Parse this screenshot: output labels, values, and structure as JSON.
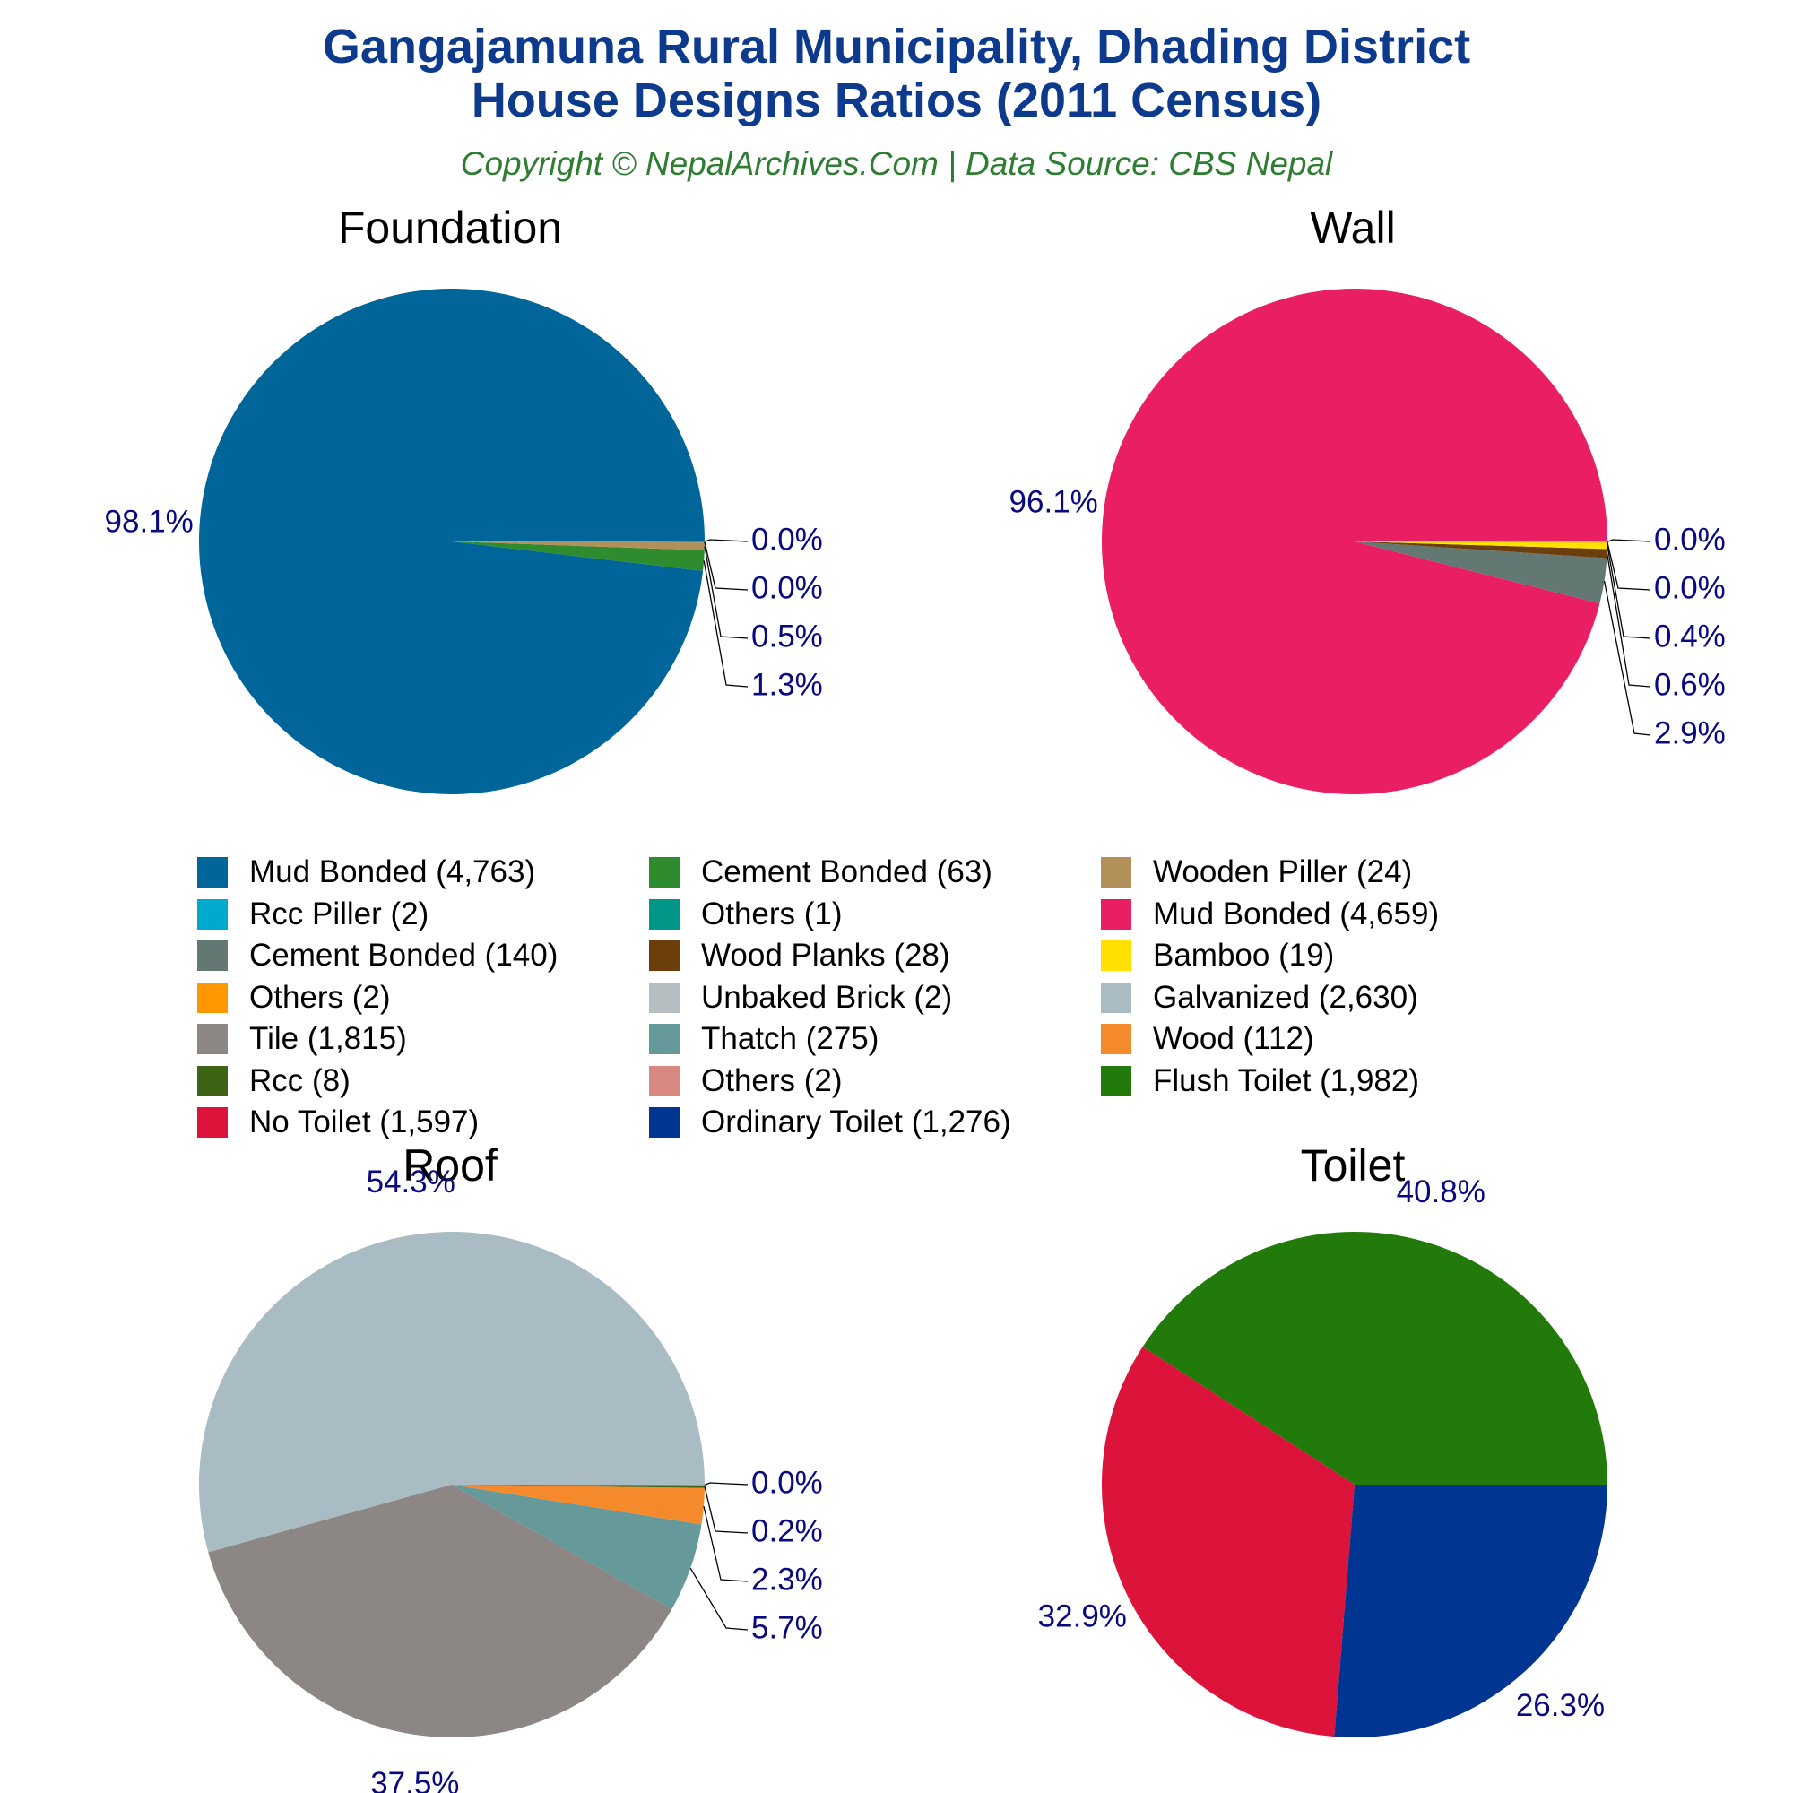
{
  "header": {
    "title_line1": "Gangajamuna Rural Municipality, Dhading District",
    "title_line2": "House Designs Ratios (2011 Census)",
    "subtitle": "Copyright © NepalArchives.Com | Data Source: CBS Nepal",
    "title_color": "#0D3A8C",
    "subtitle_color": "#2E7D32"
  },
  "label_color": "#0A0A80",
  "chart_data": [
    {
      "type": "pie",
      "title": "Foundation",
      "slices": [
        {
          "name": "Mud Bonded",
          "value": 4763,
          "color": "#006699",
          "label": "98.1%"
        },
        {
          "name": "Cement Bonded",
          "value": 63,
          "color": "#2E8B2E",
          "label": "1.3%"
        },
        {
          "name": "Wooden Piller",
          "value": 24,
          "color": "#B38F5A",
          "label": "0.5%"
        },
        {
          "name": "Rcc Piller",
          "value": 2,
          "color": "#00AACC",
          "label": "0.0%"
        },
        {
          "name": "Others",
          "value": 1,
          "color": "#009688",
          "label": "0.0%"
        }
      ]
    },
    {
      "type": "pie",
      "title": "Wall",
      "slices": [
        {
          "name": "Mud Bonded",
          "value": 4659,
          "color": "#E91E63",
          "label": "96.1%"
        },
        {
          "name": "Cement Bonded",
          "value": 140,
          "color": "#637873",
          "label": "2.9%"
        },
        {
          "name": "Wood Planks",
          "value": 28,
          "color": "#6B3E0B",
          "label": "0.6%"
        },
        {
          "name": "Bamboo",
          "value": 19,
          "color": "#FFE000",
          "label": "0.4%"
        },
        {
          "name": "Others",
          "value": 2,
          "color": "#FF9800",
          "label": "0.0%"
        },
        {
          "name": "Unbaked Brick",
          "value": 2,
          "color": "#B6BEC2",
          "label": "0.0%"
        }
      ]
    },
    {
      "type": "pie",
      "title": "Roof",
      "slices": [
        {
          "name": "Galvanized",
          "value": 2630,
          "color": "#A9BBC3",
          "label": "54.3%"
        },
        {
          "name": "Tile",
          "value": 1815,
          "color": "#8C8784",
          "label": "37.5%"
        },
        {
          "name": "Thatch",
          "value": 275,
          "color": "#669999",
          "label": "5.7%"
        },
        {
          "name": "Wood",
          "value": 112,
          "color": "#F58A2C",
          "label": "2.3%"
        },
        {
          "name": "Rcc",
          "value": 8,
          "color": "#3D6314",
          "label": "0.2%"
        },
        {
          "name": "Others",
          "value": 2,
          "color": "#D98880",
          "label": "0.0%"
        }
      ]
    },
    {
      "type": "pie",
      "title": "Toilet",
      "slices": [
        {
          "name": "Flush Toilet",
          "value": 1982,
          "color": "#217A09",
          "label": "40.8%"
        },
        {
          "name": "No Toilet",
          "value": 1597,
          "color": "#DC143C",
          "label": "32.9%"
        },
        {
          "name": "Ordinary Toilet",
          "value": 1276,
          "color": "#003591",
          "label": "26.3%"
        }
      ]
    }
  ],
  "legend": {
    "items": [
      {
        "label": "Mud Bonded (4,763)",
        "color": "#006699"
      },
      {
        "label": "Cement Bonded (63)",
        "color": "#2E8B2E"
      },
      {
        "label": "Wooden Piller (24)",
        "color": "#B38F5A"
      },
      {
        "label": "Rcc Piller (2)",
        "color": "#00AACC"
      },
      {
        "label": "Others (1)",
        "color": "#009688"
      },
      {
        "label": "Mud Bonded (4,659)",
        "color": "#E91E63"
      },
      {
        "label": "Cement Bonded (140)",
        "color": "#637873"
      },
      {
        "label": "Wood Planks (28)",
        "color": "#6B3E0B"
      },
      {
        "label": "Bamboo (19)",
        "color": "#FFE000"
      },
      {
        "label": "Others (2)",
        "color": "#FF9800"
      },
      {
        "label": "Unbaked Brick (2)",
        "color": "#B6BEC2"
      },
      {
        "label": "Galvanized (2,630)",
        "color": "#A9BBC3"
      },
      {
        "label": "Tile (1,815)",
        "color": "#8C8784"
      },
      {
        "label": "Thatch (275)",
        "color": "#669999"
      },
      {
        "label": "Wood (112)",
        "color": "#F58A2C"
      },
      {
        "label": "Rcc (8)",
        "color": "#3D6314"
      },
      {
        "label": "Others (2)",
        "color": "#D98880"
      },
      {
        "label": "Flush Toilet (1,982)",
        "color": "#217A09"
      },
      {
        "label": "No Toilet (1,597)",
        "color": "#DC143C"
      },
      {
        "label": "Ordinary Toilet (1,276)",
        "color": "#003591"
      }
    ]
  }
}
